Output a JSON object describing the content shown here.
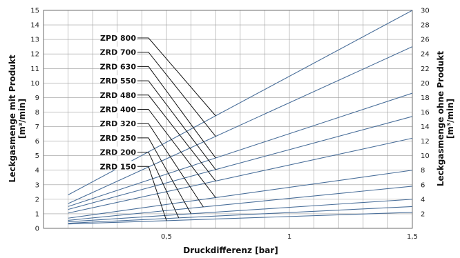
{
  "chart_data": {
    "type": "line",
    "xlabel": "Druckdifferenz [bar]",
    "ylabel_left_line1": "Leckgasmenge mit Produkt",
    "ylabel_left_line2": "[m³/min]",
    "ylabel_right_line1": "Leckgasmenge ohne Produkt",
    "ylabel_right_line2": "[m³/min]",
    "xlim": [
      0,
      1.5
    ],
    "ylim_left": [
      0,
      15
    ],
    "ylim_right": [
      0,
      30
    ],
    "x_ticks": [
      {
        "value": 0.5,
        "label": "0,5"
      },
      {
        "value": 1,
        "label": "1"
      },
      {
        "value": 1.5,
        "label": "1,5"
      }
    ],
    "y_ticks_left": [
      "0",
      "1",
      "2",
      "3",
      "4",
      "5",
      "6",
      "7",
      "8",
      "9",
      "10",
      "11",
      "12",
      "13",
      "14",
      "15"
    ],
    "y_ticks_right": [
      "2",
      "4",
      "6",
      "8",
      "10",
      "12",
      "14",
      "16",
      "18",
      "20",
      "22",
      "24",
      "26",
      "28",
      "30"
    ],
    "grid": true,
    "line_color": "#4a6f9a",
    "series": [
      {
        "name": "ZPD 800",
        "x": [
          0.1,
          1.5
        ],
        "y": [
          2.3,
          15.0
        ],
        "leader_x": 0.7
      },
      {
        "name": "ZRD 700",
        "x": [
          0.1,
          1.5
        ],
        "y": [
          1.7,
          12.5
        ],
        "leader_x": 0.7
      },
      {
        "name": "ZRD 630",
        "x": [
          0.1,
          1.5
        ],
        "y": [
          1.5,
          9.3
        ],
        "leader_x": 0.7
      },
      {
        "name": "ZRD 550",
        "x": [
          0.1,
          1.5
        ],
        "y": [
          1.3,
          7.7
        ],
        "leader_x": 0.7
      },
      {
        "name": "ZRD 480",
        "x": [
          0.1,
          1.5
        ],
        "y": [
          1.05,
          6.2
        ],
        "leader_x": 0.7
      },
      {
        "name": "ZRD 400",
        "x": [
          0.1,
          1.5
        ],
        "y": [
          0.7,
          4.0
        ],
        "leader_x": 0.7
      },
      {
        "name": "ZRD 320",
        "x": [
          0.1,
          1.5
        ],
        "y": [
          0.55,
          2.9
        ],
        "leader_x": 0.65
      },
      {
        "name": "ZRD 250",
        "x": [
          0.1,
          1.5
        ],
        "y": [
          0.45,
          2.0
        ],
        "leader_x": 0.6
      },
      {
        "name": "ZRD 200",
        "x": [
          0.1,
          1.5
        ],
        "y": [
          0.35,
          1.5
        ],
        "leader_x": 0.55
      },
      {
        "name": "ZRD 150",
        "x": [
          0.1,
          1.5
        ],
        "y": [
          0.3,
          1.1
        ],
        "leader_x": 0.5
      }
    ]
  }
}
